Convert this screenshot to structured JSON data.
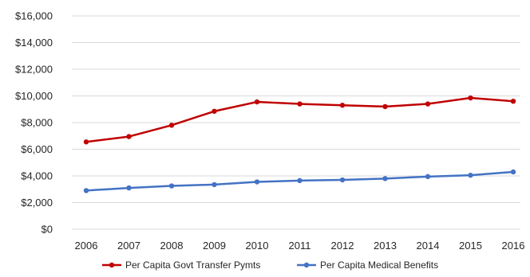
{
  "chart_data": {
    "type": "line",
    "title": "",
    "xlabel": "",
    "ylabel": "",
    "x": [
      "2006",
      "2007",
      "2008",
      "2009",
      "2010",
      "2011",
      "2012",
      "2013",
      "2014",
      "2015",
      "2016"
    ],
    "ylim": [
      0,
      16000
    ],
    "yticks": [
      0,
      2000,
      4000,
      6000,
      8000,
      10000,
      12000,
      14000,
      16000
    ],
    "ytick_labels": [
      "$0",
      "$2,000",
      "$4,000",
      "$6,000",
      "$8,000",
      "$10,000",
      "$12,000",
      "$14,000",
      "$16,000"
    ],
    "grid": true,
    "legend_position": "bottom",
    "series": [
      {
        "name": "Per Capita Govt Transfer Pymts",
        "color": "#c00000",
        "values": [
          6550,
          6950,
          7800,
          8850,
          9550,
          9400,
          9300,
          9200,
          9400,
          9850,
          9600
        ]
      },
      {
        "name": "Per Capita Medical Benefits",
        "color": "#4472c4",
        "values": [
          2900,
          3100,
          3250,
          3350,
          3550,
          3650,
          3700,
          3800,
          3950,
          4050,
          4300
        ]
      }
    ]
  }
}
